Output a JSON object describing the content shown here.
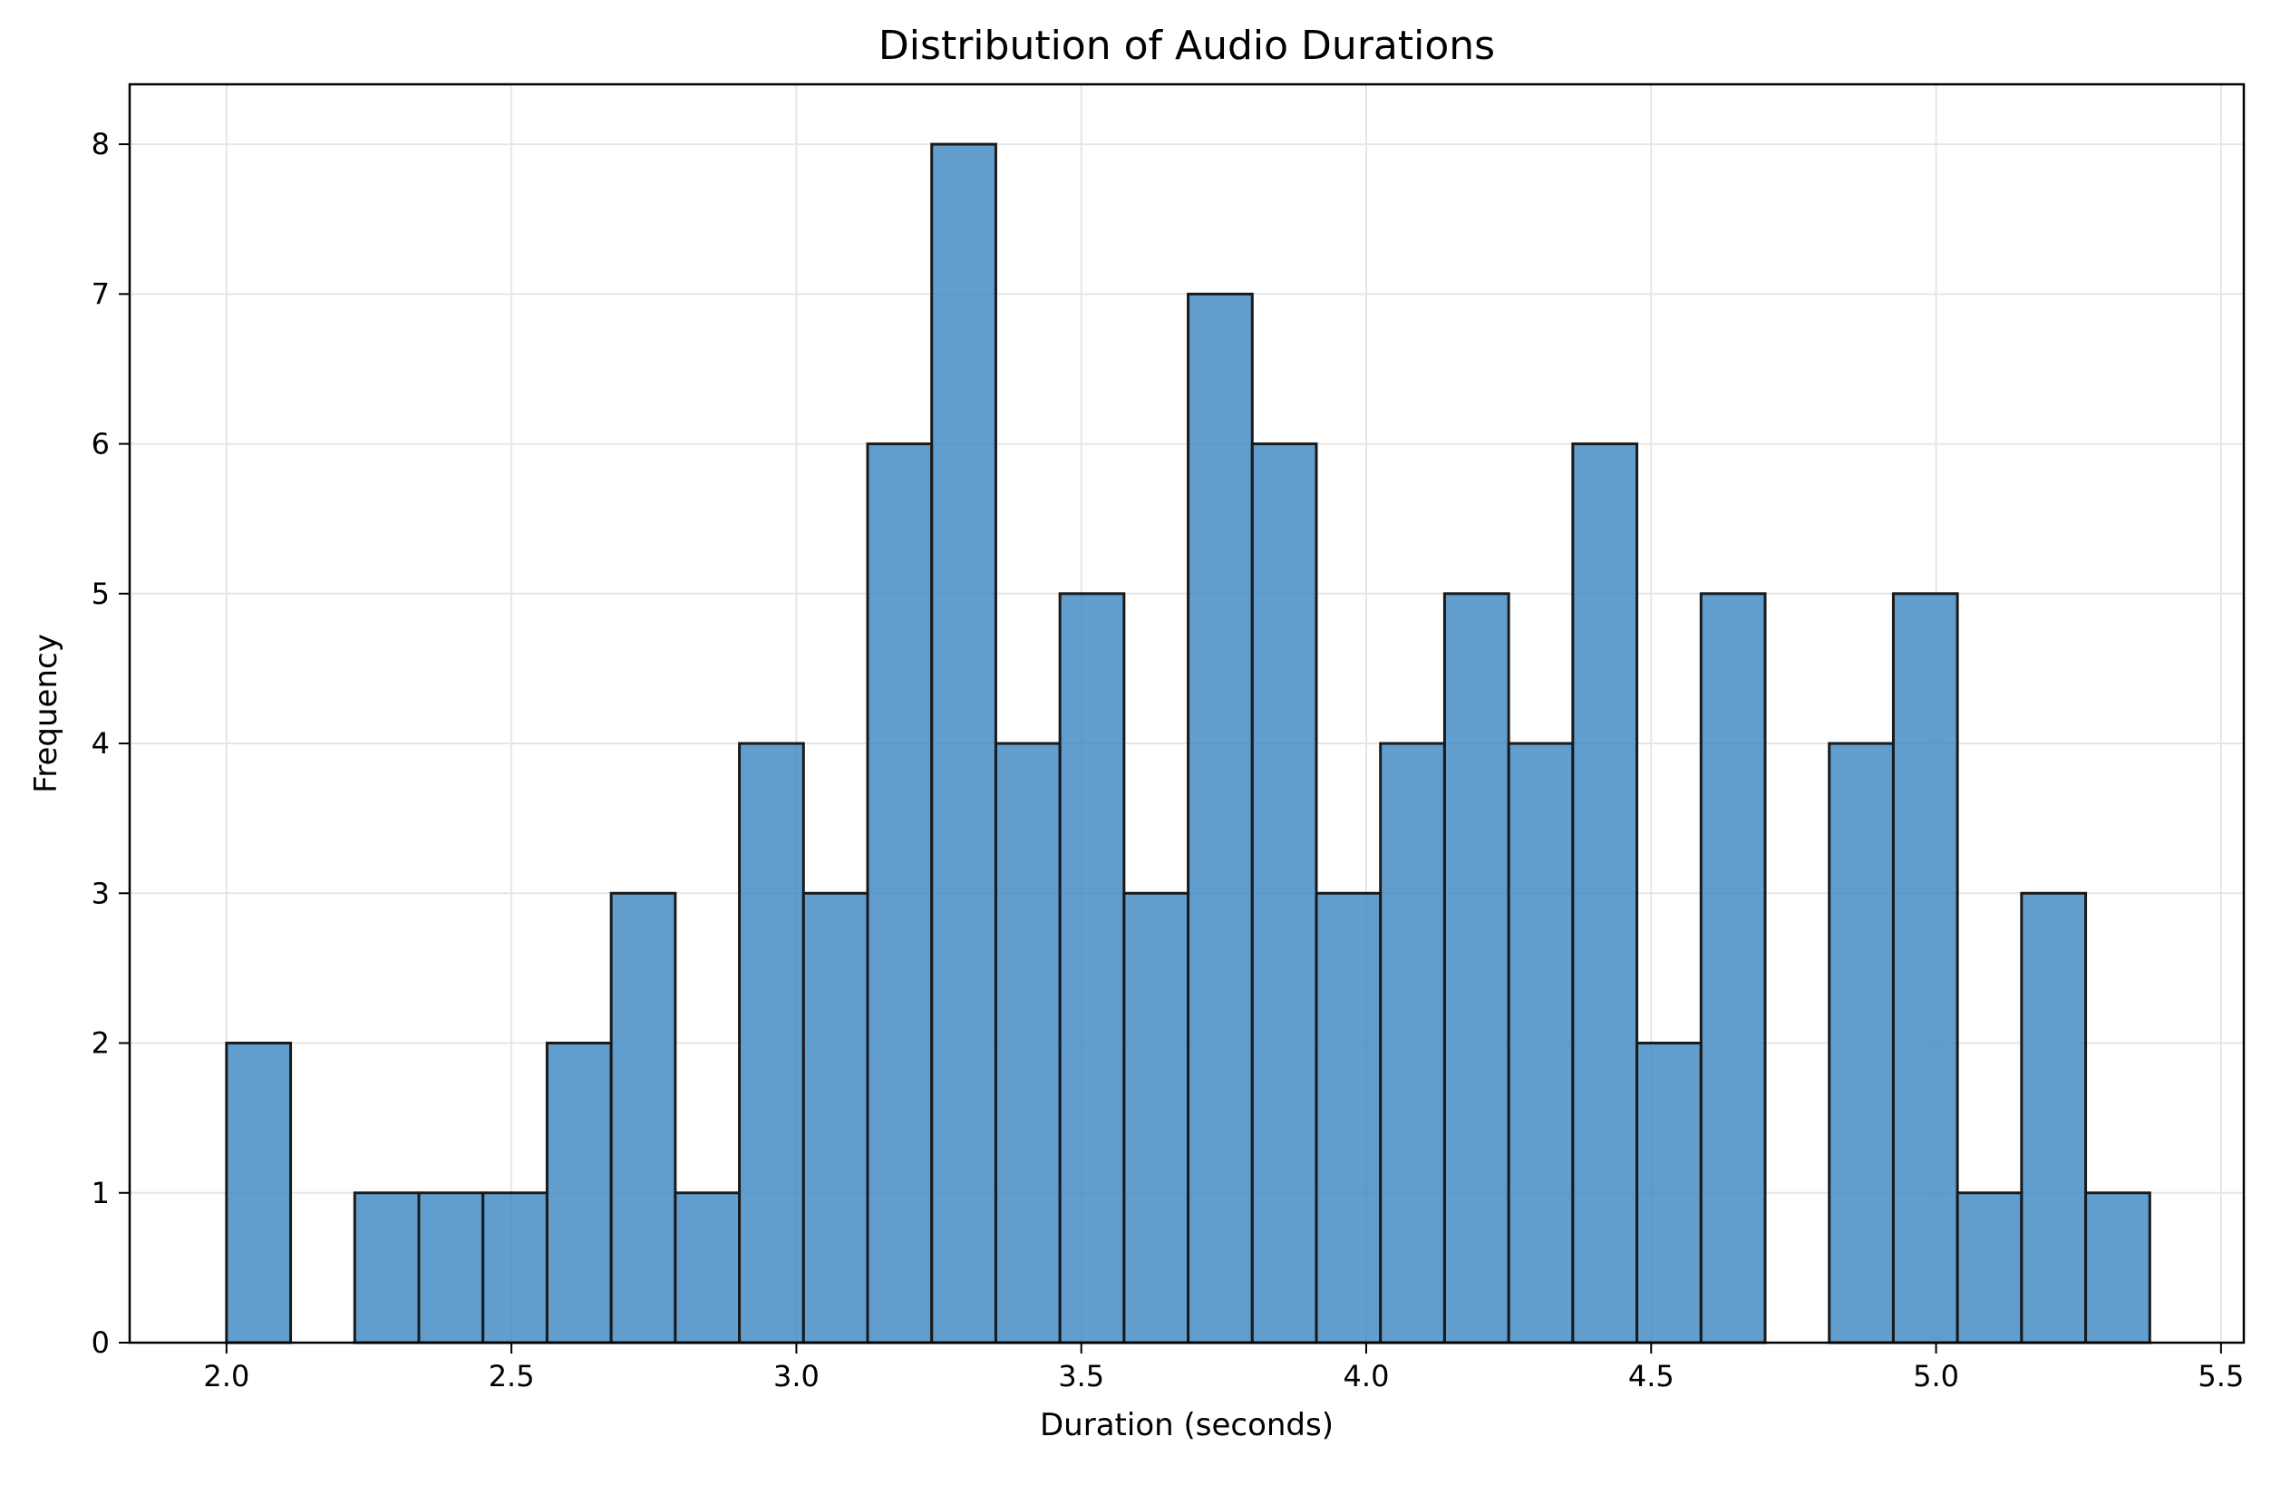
{
  "chart_data": {
    "type": "bar",
    "title": "Distribution of Audio Durations",
    "xlabel": "Duration (seconds)",
    "ylabel": "Frequency",
    "xlim": [
      1.83,
      5.54
    ],
    "ylim": [
      0,
      8.4
    ],
    "grid": true,
    "legend": "none",
    "colors": {
      "bar_fill": "#3a86c2",
      "bar_fill_opacity": 0.8,
      "bar_edge": "#1a1a1a",
      "grid": "#e6e6e6",
      "axes": "#000000"
    },
    "xticks": [
      "2.0",
      "2.5",
      "3.0",
      "3.5",
      "4.0",
      "4.5",
      "5.0",
      "5.5"
    ],
    "xtick_values": [
      2.0,
      2.5,
      3.0,
      3.5,
      4.0,
      4.5,
      5.0,
      5.5
    ],
    "yticks": [
      "0",
      "1",
      "2",
      "3",
      "4",
      "5",
      "6",
      "7",
      "8"
    ],
    "ytick_values": [
      0,
      1,
      2,
      3,
      4,
      5,
      6,
      7,
      8
    ],
    "bin_edges": [
      2.0,
      2.1125,
      2.225,
      2.3375,
      2.45,
      2.5625,
      2.675,
      2.7875,
      2.9,
      3.0125,
      3.125,
      3.2375,
      3.35,
      3.4625,
      3.575,
      3.6875,
      3.8,
      3.9125,
      4.025,
      4.1375,
      4.25,
      4.3625,
      4.475,
      4.5875,
      4.7,
      4.8125,
      4.925,
      5.0375,
      5.15,
      5.2625,
      5.375
    ],
    "counts": [
      2,
      0,
      1,
      1,
      1,
      2,
      3,
      1,
      4,
      3,
      6,
      8,
      4,
      5,
      3,
      7,
      6,
      3,
      4,
      5,
      4,
      6,
      2,
      5,
      0,
      4,
      5,
      1,
      3,
      1
    ]
  }
}
